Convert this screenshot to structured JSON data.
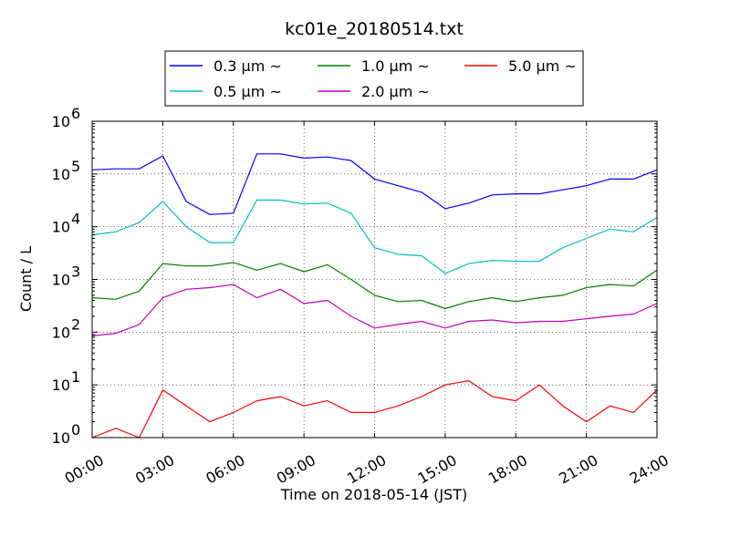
{
  "chart_data": {
    "type": "line",
    "title": "kc01e_20180514.txt",
    "xlabel": "Time on 2018-05-14 (JST)",
    "ylabel": "Count / L",
    "yscale": "log",
    "ylim_exponents": [
      0,
      6
    ],
    "xlim": [
      0,
      24
    ],
    "xtick_labels": [
      "00:00",
      "03:00",
      "06:00",
      "09:00",
      "12:00",
      "15:00",
      "18:00",
      "21:00",
      "24:00"
    ],
    "ytick_exponents": [
      "0",
      "1",
      "2",
      "3",
      "4",
      "5",
      "6"
    ],
    "ytick_base": "10",
    "grid": true,
    "legend_position": "top-center",
    "legend_suffix": "μm ~",
    "x_hours": [
      0,
      1,
      2,
      3,
      4,
      5,
      6,
      7,
      8,
      9,
      10,
      11,
      12,
      13,
      14,
      15,
      16,
      17,
      18,
      19,
      20,
      21,
      22,
      23,
      24
    ],
    "series": [
      {
        "name": "0.3",
        "color": "#0000ff",
        "values": [
          120000,
          125000,
          125000,
          220000,
          30000,
          17000,
          18000,
          240000,
          240000,
          200000,
          210000,
          180000,
          80000,
          60000,
          45000,
          22000,
          28000,
          40000,
          42000,
          42000,
          50000,
          60000,
          80000,
          80000,
          120000
        ]
      },
      {
        "name": "0.5",
        "color": "#00bfbf",
        "values": [
          7000,
          8000,
          12000,
          30000,
          10000,
          5000,
          5000,
          32000,
          32000,
          27000,
          28000,
          18000,
          4000,
          3000,
          2800,
          1300,
          2000,
          2300,
          2200,
          2200,
          4000,
          6000,
          9000,
          8000,
          15000
        ]
      },
      {
        "name": "1.0",
        "color": "#008000",
        "values": [
          450,
          420,
          600,
          2000,
          1800,
          1800,
          2100,
          1500,
          2000,
          1400,
          1900,
          1000,
          500,
          380,
          400,
          280,
          380,
          450,
          380,
          450,
          500,
          700,
          800,
          750,
          1500
        ]
      },
      {
        "name": "2.0",
        "color": "#bf00bf",
        "values": [
          85,
          95,
          140,
          450,
          650,
          700,
          800,
          450,
          650,
          350,
          400,
          200,
          120,
          140,
          160,
          120,
          160,
          170,
          150,
          160,
          160,
          180,
          200,
          220,
          350
        ]
      },
      {
        "name": "5.0",
        "color": "#ff0000",
        "values": [
          1,
          1.5,
          1,
          8,
          4,
          2,
          3,
          5,
          6,
          4,
          5,
          3,
          3,
          4,
          6,
          10,
          12,
          6,
          5,
          10,
          4,
          2,
          4,
          3,
          8
        ]
      }
    ]
  }
}
